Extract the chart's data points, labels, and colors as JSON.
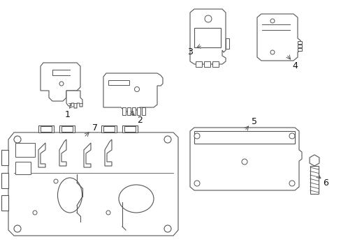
{
  "background_color": "#ffffff",
  "line_color": "#555555",
  "line_width": 0.8,
  "label_color": "#111111",
  "fig_width": 4.89,
  "fig_height": 3.6,
  "dpi": 100
}
